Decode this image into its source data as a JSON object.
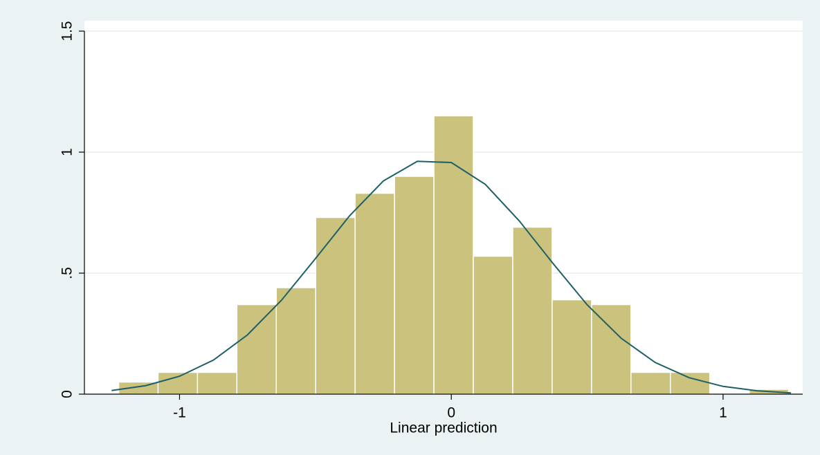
{
  "chart_data": {
    "type": "histogram",
    "xlabel": "Linear prediction",
    "bins": [
      -1.224,
      -1.079,
      -0.934,
      -0.789,
      -0.644,
      -0.499,
      -0.354,
      -0.209,
      -0.064,
      0.081,
      0.226,
      0.371,
      0.516,
      0.661,
      0.806,
      0.951,
      1.096,
      1.241
    ],
    "values": [
      0.05,
      0.09,
      0.09,
      0.37,
      0.44,
      0.73,
      0.83,
      0.9,
      1.15,
      0.57,
      0.69,
      0.39,
      0.37,
      0.09,
      0.09,
      0,
      0.02
    ],
    "color": "#cbc27e",
    "curve": {
      "x": [
        -1.25,
        -1.125,
        -1.0,
        -0.875,
        -0.75,
        -0.625,
        -0.5,
        -0.375,
        -0.25,
        -0.125,
        0,
        0.125,
        0.25,
        0.375,
        0.5,
        0.625,
        0.75,
        0.875,
        1.0,
        1.125,
        1.25
      ],
      "y": [
        0.015,
        0.035,
        0.074,
        0.141,
        0.245,
        0.388,
        0.56,
        0.736,
        0.881,
        0.962,
        0.957,
        0.867,
        0.716,
        0.539,
        0.369,
        0.231,
        0.131,
        0.068,
        0.032,
        0.014,
        0.005
      ],
      "color": "#1d5f66"
    },
    "xlim": [
      -1.35,
      1.293
    ],
    "ylim": [
      0,
      1.5
    ],
    "xticks": [
      -1,
      0,
      1
    ],
    "yticks": [
      0,
      {
        "value": 0.5,
        "label": ".5"
      },
      1,
      1.5
    ],
    "grid": true
  }
}
